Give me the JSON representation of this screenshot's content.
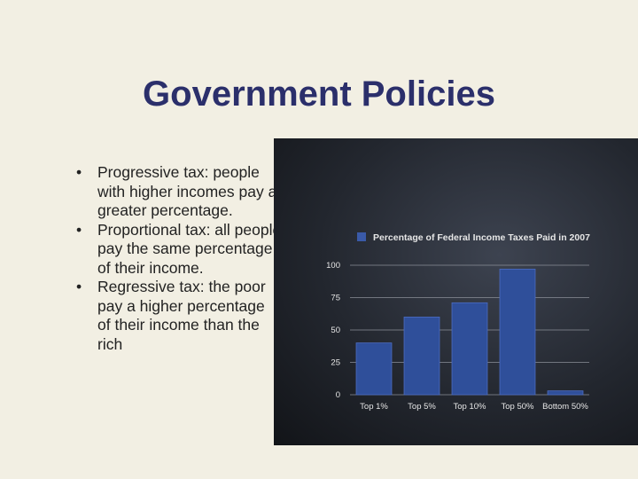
{
  "slide": {
    "title": "Government Policies",
    "bullet_marker": "•",
    "bullets": [
      "Progressive tax: people with higher incomes pay a greater percentage.",
      "Proportional tax: all people pay the same percentage of their income.",
      "Regressive tax: the poor pay a higher percentage of their income than the rich"
    ]
  },
  "colors": {
    "title": "#2b2f6b",
    "background": "#f2efe3",
    "bar": "#2f4f9a"
  },
  "chart_data": {
    "type": "bar",
    "title": "",
    "legend": "top",
    "categories": [
      "Top 1%",
      "Top 5%",
      "Top 10%",
      "Top 50%",
      "Bottom 50%"
    ],
    "series": [
      {
        "name": "Percentage of Federal Income Taxes Paid in 2007",
        "values": [
          40,
          60,
          71,
          97,
          3
        ]
      }
    ],
    "ylim": [
      0,
      100
    ],
    "yticks": [
      0,
      25,
      50,
      75,
      100
    ],
    "xlabel": "",
    "ylabel": "",
    "grid": true
  }
}
